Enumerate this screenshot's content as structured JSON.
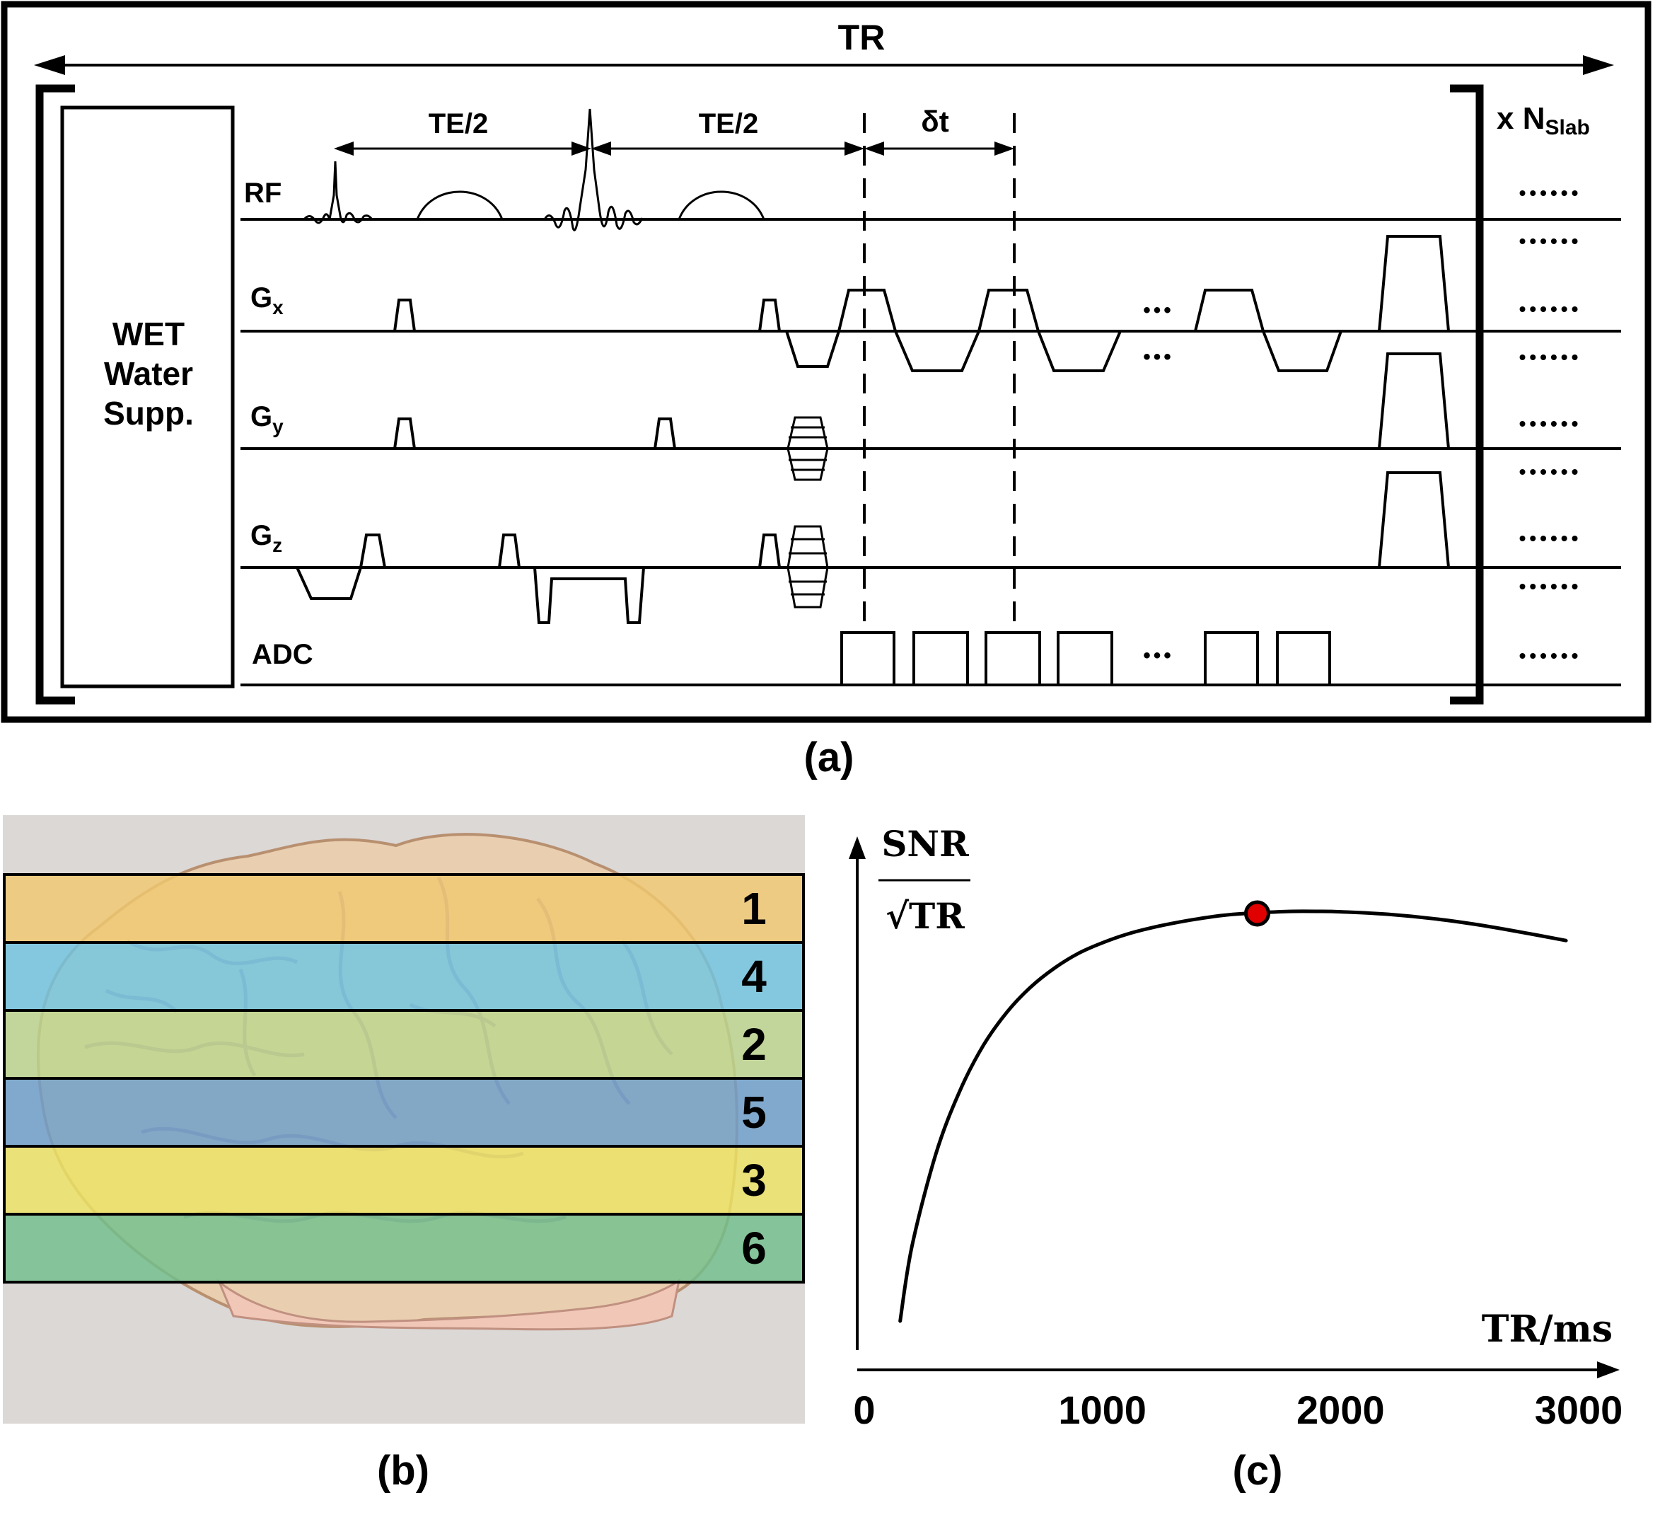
{
  "panel_a": {
    "caption": "(a)",
    "tr_label": "TR",
    "wet_lines": [
      "WET",
      "Water",
      "Supp."
    ],
    "te_half_1": "TE/2",
    "te_half_2": "TE/2",
    "delta_t": "δt",
    "repeat_prefix": "x N",
    "repeat_subscript": "Slab",
    "channels": {
      "rf": "RF",
      "gx_main": "G",
      "gx_sub": "x",
      "gy_main": "G",
      "gy_sub": "y",
      "gz_main": "G",
      "gz_sub": "z",
      "adc": "ADC"
    },
    "ellipsis_short": "•••",
    "ellipsis_long": "••••••"
  },
  "panel_b": {
    "caption": "(b)",
    "slabs": [
      {
        "label": "1",
        "color": "#f0c870"
      },
      {
        "label": "4",
        "color": "#70c5e0"
      },
      {
        "label": "2",
        "color": "#bcd58e"
      },
      {
        "label": "5",
        "color": "#6d9fcb"
      },
      {
        "label": "3",
        "color": "#ede364"
      },
      {
        "label": "6",
        "color": "#72c08c"
      }
    ]
  },
  "panel_c": {
    "caption": "(c)"
  },
  "chart_data": {
    "type": "line",
    "title": "",
    "ylabel_numerator": "SNR",
    "ylabel_denominator": "√TR",
    "xlabel": "TR/ms",
    "xlim": [
      0,
      3000
    ],
    "xticks": [
      "0",
      "1000",
      "2000",
      "3000"
    ],
    "grid": false,
    "x": [
      150,
      200,
      300,
      400,
      500,
      600,
      700,
      800,
      900,
      1000,
      1100,
      1200,
      1300,
      1400,
      1500,
      1600,
      1700,
      1800,
      1900,
      2000,
      2200,
      2400,
      2600,
      2800,
      2950
    ],
    "y": [
      0.02,
      0.2,
      0.42,
      0.57,
      0.68,
      0.76,
      0.82,
      0.865,
      0.9,
      0.925,
      0.945,
      0.96,
      0.972,
      0.982,
      0.99,
      0.995,
      0.998,
      1.0,
      1.0,
      0.999,
      0.993,
      0.982,
      0.966,
      0.946,
      0.93
    ],
    "highlight_point": {
      "x": 1650,
      "y": 0.995,
      "color": "#e00000"
    }
  }
}
